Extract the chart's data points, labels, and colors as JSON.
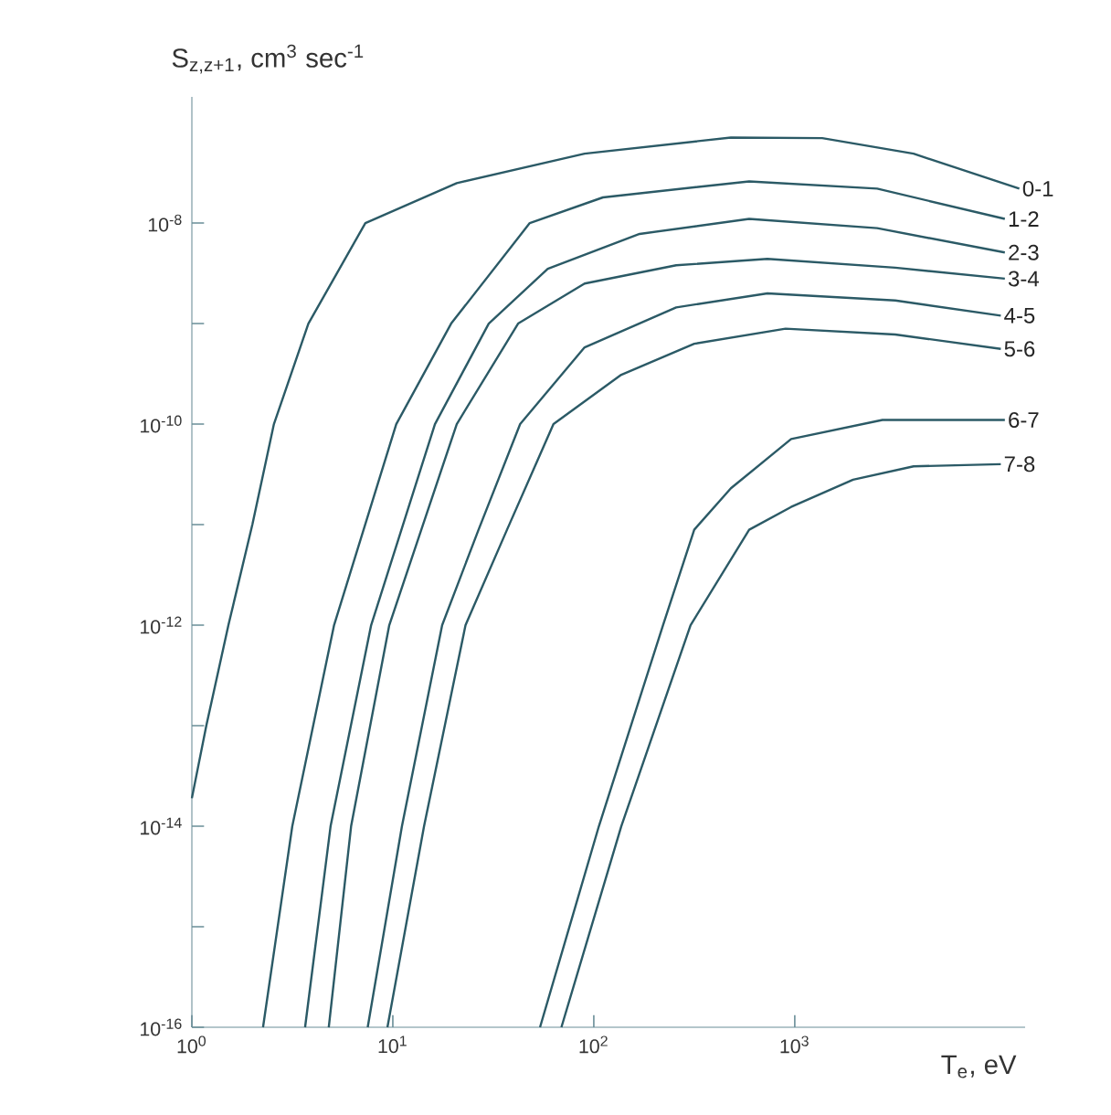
{
  "chart_data": {
    "type": "line",
    "xlabel": "T$_{e}$, eV",
    "ylabel": "S$_{z,z+1}$, cm$^{3}$ sec$^{-1}$",
    "log": "xy",
    "xlim": [
      1,
      14000
    ],
    "ylim": [
      1e-16,
      1.8e-07
    ],
    "xticks": [
      {
        "value": 1,
        "label": "10$^{0}$"
      },
      {
        "value": 10,
        "label": "10$^{1}$"
      },
      {
        "value": 100,
        "label": "10$^{2}$"
      },
      {
        "value": 1000,
        "label": "10$^{3}$"
      }
    ],
    "yticks": [
      {
        "value": 1e-16,
        "label": "10$^{-16}$"
      },
      {
        "value": 1e-15,
        "label": null
      },
      {
        "value": 1e-14,
        "label": "10$^{-14}$"
      },
      {
        "value": 1e-13,
        "label": null
      },
      {
        "value": 1e-12,
        "label": "10$^{-12}$"
      },
      {
        "value": 1e-11,
        "label": null
      },
      {
        "value": 1e-10,
        "label": "10$^{-10}$"
      },
      {
        "value": 1e-09,
        "label": null
      },
      {
        "value": 1e-08,
        "label": "10$^{-8}$"
      }
    ],
    "series": [
      {
        "name": "0-1",
        "color": "#2b5a66",
        "x": [
          1,
          1.18,
          1.52,
          2.0,
          2.56,
          3.8,
          7.3,
          20.8,
          90,
          481,
          1370,
          3900,
          13100
        ],
        "values": [
          1.9e-14,
          1e-13,
          1e-12,
          1e-11,
          1e-10,
          1e-09,
          1e-08,
          2.5e-08,
          4.9e-08,
          7.1e-08,
          7e-08,
          4.9e-08,
          2.2e-08
        ]
      },
      {
        "name": "1-2",
        "color": "#2b5a66",
        "x": [
          2.26,
          3.16,
          5.1,
          10.4,
          19.5,
          48,
          111,
          593,
          2570,
          11100
        ],
        "values": [
          1e-16,
          1e-14,
          1e-12,
          1e-10,
          1e-09,
          1e-08,
          1.8e-08,
          2.6e-08,
          2.2e-08,
          1.1e-08
        ]
      },
      {
        "name": "2-3",
        "color": "#2b5a66",
        "x": [
          3.66,
          4.9,
          7.8,
          16.2,
          30,
          59,
          169,
          593,
          2570,
          11100
        ],
        "values": [
          1e-16,
          1e-14,
          1e-12,
          1e-10,
          1e-09,
          3.5e-09,
          7.8e-09,
          1.1e-08,
          8.9e-09,
          5.1e-09
        ]
      },
      {
        "name": "3-4",
        "color": "#2b5a66",
        "x": [
          4.8,
          6.2,
          9.6,
          20.8,
          42,
          90,
          257,
          731,
          3160,
          11100
        ],
        "values": [
          1e-16,
          1e-14,
          1e-12,
          1e-10,
          1e-09,
          2.5e-09,
          3.8e-09,
          4.4e-09,
          3.6e-09,
          2.8e-09
        ]
      },
      {
        "name": "4-5",
        "color": "#2b5a66",
        "x": [
          7.5,
          11.1,
          17.6,
          26.7,
          43,
          90,
          257,
          731,
          3160,
          10600
        ],
        "values": [
          1e-16,
          1e-14,
          1e-12,
          8.9e-12,
          1e-10,
          5.8e-10,
          1.45e-09,
          2e-09,
          1.7e-09,
          1.2e-09
        ]
      },
      {
        "name": "5-6",
        "color": "#2b5a66",
        "x": [
          9.4,
          14.3,
          23,
          37,
          63,
          137,
          316,
          900,
          3160,
          10600
        ],
        "values": [
          1e-16,
          1e-14,
          1e-12,
          8.9e-12,
          1e-10,
          3.1e-10,
          6.3e-10,
          8.9e-10,
          7.8e-10,
          5.6e-10
        ]
      },
      {
        "name": "6-7",
        "color": "#2b5a66",
        "x": [
          54,
          106,
          221,
          316,
          481,
          959,
          2730,
          11100
        ],
        "values": [
          1e-16,
          1e-14,
          1e-12,
          8.9e-12,
          2.3e-11,
          7.1e-11,
          1.1e-10,
          1.1e-10
        ]
      },
      {
        "name": "7-8",
        "color": "#2b5a66",
        "x": [
          69,
          137,
          303,
          593,
          959,
          1950,
          3900,
          10600
        ],
        "values": [
          1e-16,
          1e-14,
          1e-12,
          8.9e-12,
          1.5e-11,
          2.8e-11,
          3.8e-11,
          4e-11
        ]
      }
    ]
  }
}
